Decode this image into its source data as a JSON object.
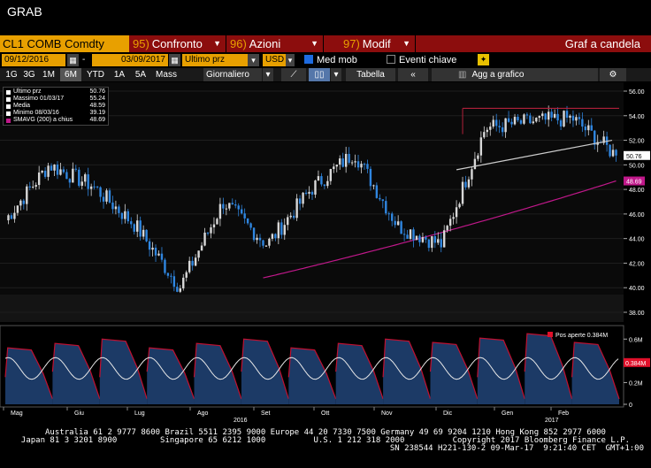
{
  "window": {
    "title": "GRAB"
  },
  "command_bar": {
    "ticker": "CL1 COMB Comdty",
    "menus": [
      {
        "num": "95)",
        "label": "Confronto"
      },
      {
        "num": "96)",
        "label": "Azioni"
      },
      {
        "num": "97)",
        "label": "Modif"
      }
    ],
    "chart_title": "Graf a candela"
  },
  "date_row": {
    "start_date": "09/12/2016",
    "dash": "-",
    "end_date": "03/09/2017",
    "price_field": "Ultimo prz",
    "currency": "USD",
    "med_mob_label": "Med mob",
    "eventi_label": "Eventi chiave"
  },
  "period_row": {
    "periods": [
      "1G",
      "3G",
      "1M",
      "6M",
      "YTD",
      "1A",
      "5A",
      "Mass"
    ],
    "selected": "6M",
    "frequency": "Giornaliero",
    "tabella_label": "Tabella",
    "agg_label": "Agg a grafico"
  },
  "legend": {
    "rows": [
      {
        "label": "Ultimo prz",
        "value": "50.76"
      },
      {
        "label": "Massimo 01/03/17",
        "value": "55.24"
      },
      {
        "label": "Media",
        "value": "48.59"
      },
      {
        "label": "Minimo 08/03/16",
        "value": "39.19"
      },
      {
        "label": "SMAVG (200) a chius",
        "value": "48.69"
      }
    ]
  },
  "price_axis": {
    "ticks": [
      "56.00",
      "54.00",
      "52.00",
      "50.00",
      "48.00",
      "46.00",
      "44.00",
      "42.00",
      "40.00",
      "38.00"
    ],
    "last_label": "50.76",
    "sma_label": "48.69"
  },
  "oi_panel": {
    "legend": "Pos aperte 0.384M",
    "current_label": "0.384M",
    "ticks": [
      "0.6M",
      "0.4M",
      "0.2M",
      "0"
    ]
  },
  "time_axis": {
    "months": [
      "Mag",
      "Giu",
      "Lug",
      "Ago",
      "Set",
      "Ott",
      "Nov",
      "Dic",
      "Gen",
      "Feb"
    ],
    "years": [
      "2016",
      "2017"
    ]
  },
  "footer": {
    "line1": "Australia 61 2 9777 8600 Brazil 5511 2395 9000 Europe 44 20 7330 7500 Germany 49 69 9204 1210 Hong Kong 852 2977 6000",
    "line2": "Japan 81 3 3201 8900         Singapore 65 6212 1000          U.S. 1 212 318 2000          Copyright 2017 Bloomberg Finance L.P.",
    "line3": "SN 238544 H221-130-2 09-Mar-17  9:21:40 CET  GMT+1:00"
  },
  "colors": {
    "orange": "#e8a000",
    "red_bar": "#8c0d0d",
    "up_candle": "#d8d8d8",
    "down_candle": "#2f86e0",
    "sma": "#c0188a",
    "resistance": "#b0203a",
    "oi_fill": "#1c3a66"
  },
  "chart_data": {
    "type": "candlestick",
    "title": "",
    "xlabel": "",
    "ylabel": "",
    "ylim": [
      37,
      57
    ],
    "x_months": [
      "Mag",
      "Giu",
      "Lug",
      "Ago",
      "Set",
      "Ott",
      "Nov",
      "Dic",
      "Gen",
      "Feb"
    ],
    "approx_close_path": [
      {
        "month": "Mag",
        "close": 45.5
      },
      {
        "month": "Giu",
        "close": 50.0
      },
      {
        "month": "Giu",
        "close": 48.3
      },
      {
        "month": "Lug",
        "close": 45.0
      },
      {
        "month": "Ago",
        "close": 40.0
      },
      {
        "month": "Ago",
        "close": 47.0
      },
      {
        "month": "Set",
        "close": 43.5
      },
      {
        "month": "Set",
        "close": 48.0
      },
      {
        "month": "Ott",
        "close": 51.0
      },
      {
        "month": "Nov",
        "close": 45.0
      },
      {
        "month": "Nov",
        "close": 43.5
      },
      {
        "month": "Dic",
        "close": 53.0
      },
      {
        "month": "Gen",
        "close": 53.5
      },
      {
        "month": "Feb",
        "close": 53.8
      },
      {
        "month": "Feb",
        "close": 50.76
      }
    ],
    "sma200": {
      "name": "SMAVG (200) a chius",
      "last": 48.69
    },
    "last": 50.76,
    "high": 55.24,
    "mean": 48.59,
    "low": 39.19,
    "open_interest": {
      "name": "Pos aperte",
      "last": "0.384M",
      "ylim": [
        0,
        0.7
      ]
    }
  }
}
